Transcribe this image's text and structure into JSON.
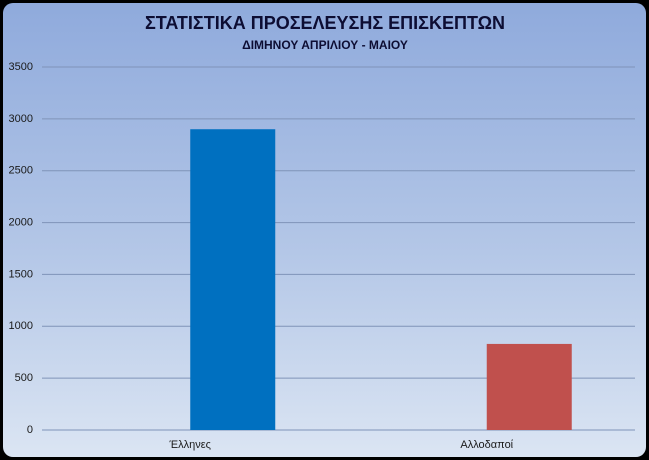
{
  "chart_data": {
    "type": "bar",
    "title": "ΣΤΑΤΙΣΤΙΚΑ ΠΡΟΣΕΛΕΥΣΗΣ ΕΠΙΣΚΕΠΤΩΝ",
    "subtitle": "ΔΙΜΗΝΟΥ ΑΠΡΙΛΙΟΥ - ΜΑΙΟΥ",
    "categories": [
      "Έλληνες",
      "Αλλοδαποί"
    ],
    "values": [
      2900,
      830
    ],
    "colors": [
      "#0070c0",
      "#c0504d"
    ],
    "ylim": [
      0,
      3500
    ],
    "yticks": [
      0,
      500,
      1000,
      1500,
      2000,
      2500,
      3000,
      3500
    ],
    "grid": true
  }
}
